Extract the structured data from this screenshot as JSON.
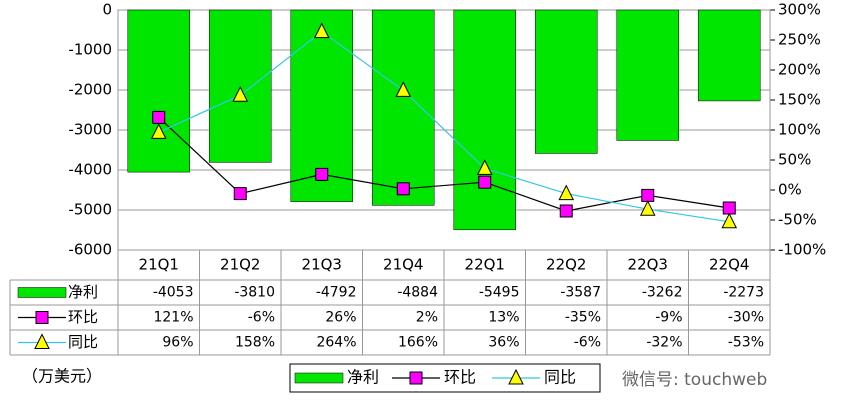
{
  "chart_data": {
    "type": "bar",
    "unit_label": "（万美元）",
    "watermark": "微信号: touchweb",
    "categories": [
      "21Q1",
      "21Q2",
      "21Q3",
      "21Q4",
      "22Q1",
      "22Q2",
      "22Q3",
      "22Q4"
    ],
    "series": [
      {
        "name": "净利",
        "type": "bar",
        "color": "#00e600",
        "values": [
          -4053,
          -3810,
          -4792,
          -4884,
          -5495,
          -3587,
          -3262,
          -2273
        ]
      },
      {
        "name": "环比",
        "type": "line",
        "axis": "y2",
        "color": "#000000",
        "marker": "square",
        "marker_color": "#ff00ff",
        "values": [
          121,
          -6,
          26,
          2,
          13,
          -35,
          -9,
          -30
        ],
        "value_labels": [
          "121%",
          "-6%",
          "26%",
          "2%",
          "13%",
          "-35%",
          "-9%",
          "-30%"
        ]
      },
      {
        "name": "同比",
        "type": "line",
        "axis": "y2",
        "color": "#33c6e8",
        "marker": "triangle",
        "marker_color": "#ffff00",
        "values": [
          96,
          158,
          264,
          166,
          36,
          -6,
          -32,
          -53
        ],
        "value_labels": [
          "96%",
          "158%",
          "264%",
          "166%",
          "36%",
          "-6%",
          "-32%",
          "-53%"
        ]
      }
    ],
    "ylim": [
      -6000,
      0
    ],
    "yticks": [
      0,
      -1000,
      -2000,
      -3000,
      -4000,
      -5000,
      -6000
    ],
    "y2lim": [
      -100,
      300
    ],
    "y2ticks": [
      {
        "value": 300,
        "label": "300%"
      },
      {
        "value": 250,
        "label": "250%"
      },
      {
        "value": 200,
        "label": "200%"
      },
      {
        "value": 150,
        "label": "150%"
      },
      {
        "value": 100,
        "label": "100%"
      },
      {
        "value": 50,
        "label": "50%"
      },
      {
        "value": 0,
        "label": "0%"
      },
      {
        "value": -50,
        "label": "-50%"
      },
      {
        "value": -100,
        "label": "-100%"
      }
    ],
    "grid": true
  }
}
